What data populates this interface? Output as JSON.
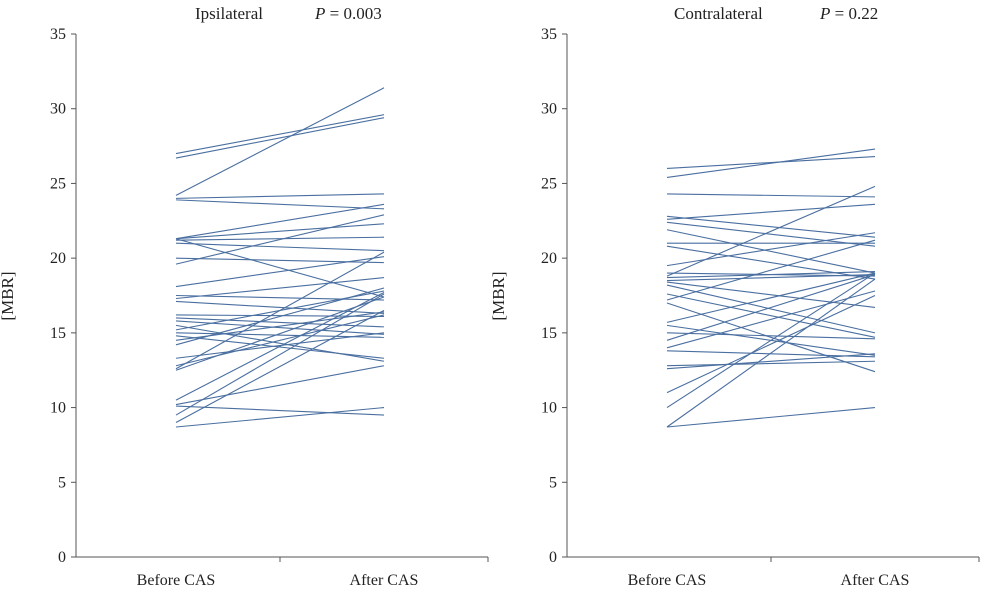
{
  "chart_data": [
    {
      "type": "line",
      "title": "Ipsilateral",
      "p_label": "P",
      "p_text": " = 0.003",
      "ylabel": "[MBR]",
      "categories": [
        "Before CAS",
        "After CAS"
      ],
      "ylim": [
        0,
        35
      ],
      "yticks": [
        0,
        5,
        10,
        15,
        20,
        25,
        30,
        35
      ],
      "line_color": "#4a6fa0",
      "grid": false,
      "series": [
        {
          "values": [
            27.0,
            29.6
          ]
        },
        {
          "values": [
            26.7,
            29.4
          ]
        },
        {
          "values": [
            24.2,
            31.4
          ]
        },
        {
          "values": [
            24.0,
            24.3
          ]
        },
        {
          "values": [
            23.9,
            23.3
          ]
        },
        {
          "values": [
            21.3,
            23.6
          ]
        },
        {
          "values": [
            21.3,
            22.3
          ]
        },
        {
          "values": [
            21.2,
            21.4
          ]
        },
        {
          "values": [
            21.0,
            20.5
          ]
        },
        {
          "values": [
            21.3,
            17.4
          ]
        },
        {
          "values": [
            20.0,
            19.7
          ]
        },
        {
          "values": [
            19.6,
            22.9
          ]
        },
        {
          "values": [
            18.1,
            20.1
          ]
        },
        {
          "values": [
            17.5,
            17.2
          ]
        },
        {
          "values": [
            17.3,
            18.7
          ]
        },
        {
          "values": [
            17.1,
            16.3
          ]
        },
        {
          "values": [
            16.2,
            16.1
          ]
        },
        {
          "values": [
            16.0,
            15.4
          ]
        },
        {
          "values": [
            15.8,
            14.9
          ]
        },
        {
          "values": [
            15.5,
            13.1
          ]
        },
        {
          "values": [
            15.2,
            17.8
          ]
        },
        {
          "values": [
            15.0,
            14.7
          ]
        },
        {
          "values": [
            14.8,
            13.3
          ]
        },
        {
          "values": [
            14.5,
            16.4
          ]
        },
        {
          "values": [
            14.2,
            18.0
          ]
        },
        {
          "values": [
            13.3,
            15.0
          ]
        },
        {
          "values": [
            12.8,
            16.2
          ]
        },
        {
          "values": [
            12.6,
            20.4
          ]
        },
        {
          "values": [
            12.5,
            17.4
          ]
        },
        {
          "values": [
            10.5,
            17.7
          ]
        },
        {
          "values": [
            10.2,
            12.8
          ]
        },
        {
          "values": [
            10.1,
            9.5
          ]
        },
        {
          "values": [
            9.5,
            17.6
          ]
        },
        {
          "values": [
            9.0,
            16.5
          ]
        },
        {
          "values": [
            8.7,
            10.0
          ]
        }
      ]
    },
    {
      "type": "line",
      "title": "Contralateral",
      "p_label": "P",
      "p_text": " = 0.22",
      "ylabel": "[MBR]",
      "categories": [
        "Before CAS",
        "After CAS"
      ],
      "ylim": [
        0,
        35
      ],
      "yticks": [
        0,
        5,
        10,
        15,
        20,
        25,
        30,
        35
      ],
      "line_color": "#4a6fa0",
      "grid": false,
      "series": [
        {
          "values": [
            26.0,
            26.8
          ]
        },
        {
          "values": [
            25.4,
            27.3
          ]
        },
        {
          "values": [
            24.3,
            24.1
          ]
        },
        {
          "values": [
            22.8,
            21.4
          ]
        },
        {
          "values": [
            22.6,
            23.6
          ]
        },
        {
          "values": [
            22.4,
            20.8
          ]
        },
        {
          "values": [
            21.9,
            19.0
          ]
        },
        {
          "values": [
            21.0,
            21.0
          ]
        },
        {
          "values": [
            20.8,
            18.6
          ]
        },
        {
          "values": [
            19.5,
            21.7
          ]
        },
        {
          "values": [
            19.0,
            18.8
          ]
        },
        {
          "values": [
            18.8,
            24.8
          ]
        },
        {
          "values": [
            18.7,
            19.1
          ]
        },
        {
          "values": [
            18.5,
            18.9
          ]
        },
        {
          "values": [
            18.4,
            16.7
          ]
        },
        {
          "values": [
            18.2,
            15.0
          ]
        },
        {
          "values": [
            17.6,
            14.7
          ]
        },
        {
          "values": [
            17.2,
            21.2
          ]
        },
        {
          "values": [
            17.0,
            12.4
          ]
        },
        {
          "values": [
            15.7,
            19.0
          ]
        },
        {
          "values": [
            15.5,
            13.5
          ]
        },
        {
          "values": [
            15.0,
            14.6
          ]
        },
        {
          "values": [
            14.5,
            18.9
          ]
        },
        {
          "values": [
            14.0,
            17.8
          ]
        },
        {
          "values": [
            13.8,
            13.4
          ]
        },
        {
          "values": [
            12.8,
            13.1
          ]
        },
        {
          "values": [
            12.6,
            13.6
          ]
        },
        {
          "values": [
            11.0,
            17.5
          ]
        },
        {
          "values": [
            10.0,
            19.0
          ]
        },
        {
          "values": [
            8.7,
            18.6
          ]
        },
        {
          "values": [
            8.7,
            10.0
          ]
        }
      ]
    }
  ]
}
